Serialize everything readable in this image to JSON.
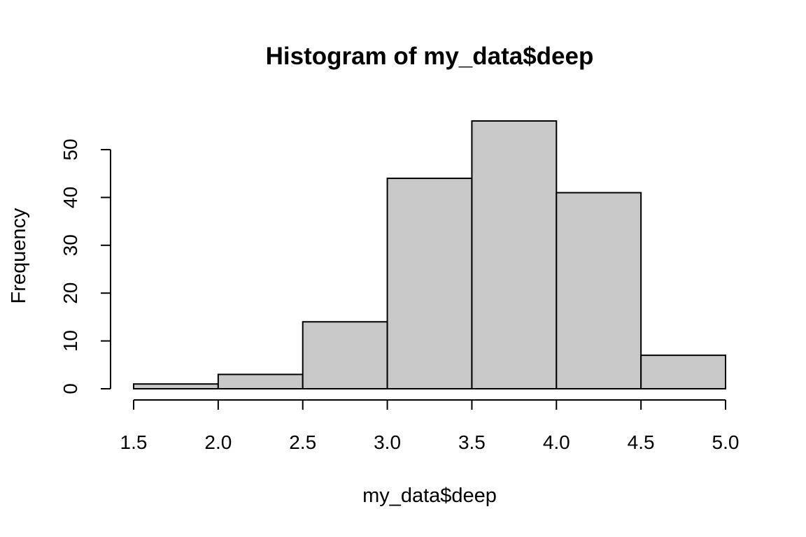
{
  "chart_data": {
    "type": "bar",
    "title": "Histogram of my_data$deep",
    "xlabel": "my_data$deep",
    "ylabel": "Frequency",
    "bins": [
      {
        "from": 1.5,
        "to": 2.0,
        "count": 1
      },
      {
        "from": 2.0,
        "to": 2.5,
        "count": 3
      },
      {
        "from": 2.5,
        "to": 3.0,
        "count": 14
      },
      {
        "from": 3.0,
        "to": 3.5,
        "count": 44
      },
      {
        "from": 3.5,
        "to": 4.0,
        "count": 56
      },
      {
        "from": 4.0,
        "to": 4.5,
        "count": 41
      },
      {
        "from": 4.5,
        "to": 5.0,
        "count": 7
      }
    ],
    "xlim": [
      1.5,
      5.0
    ],
    "ylim": [
      0,
      56
    ],
    "x_ticks": [
      "1.5",
      "2.0",
      "2.5",
      "3.0",
      "3.5",
      "4.0",
      "4.5",
      "5.0"
    ],
    "y_ticks": [
      "0",
      "10",
      "20",
      "30",
      "40",
      "50"
    ],
    "bar_fill": "#c8c8c8",
    "bar_stroke": "#000000",
    "grid": false
  }
}
